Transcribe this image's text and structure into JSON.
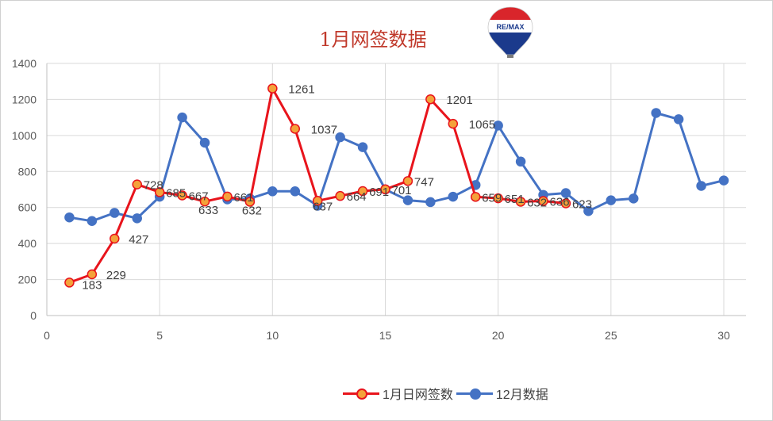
{
  "title": "1月网签数据",
  "logo_text": "RE/MAX",
  "colors": {
    "series1_line": "#e8141c",
    "series1_marker_fill": "#f4a23a",
    "series2_line": "#4472c4",
    "series2_marker_fill": "#4472c4",
    "grid": "#d9d9d9",
    "axis": "#bfbfbf"
  },
  "chart_data": {
    "type": "line",
    "title": "1月网签数据",
    "xlabel": "",
    "ylabel": "",
    "xlim": [
      0,
      30
    ],
    "ylim": [
      0,
      1400
    ],
    "x_ticks": [
      0,
      5,
      10,
      15,
      20,
      25,
      30
    ],
    "y_ticks": [
      0,
      200,
      400,
      600,
      800,
      1000,
      1200,
      1400
    ],
    "grid": true,
    "legend_position": "bottom",
    "series": [
      {
        "name": "1月日网签数",
        "x": [
          1,
          2,
          3,
          4,
          5,
          6,
          7,
          8,
          9,
          10,
          11,
          12,
          13,
          14,
          15,
          16,
          17,
          18,
          19,
          20,
          21,
          22,
          23
        ],
        "y": [
          183,
          229,
          427,
          728,
          685,
          667,
          633,
          661,
          632,
          1261,
          1037,
          637,
          664,
          691,
          701,
          747,
          1201,
          1065,
          659,
          651,
          632,
          636,
          623
        ],
        "data_labels": true
      },
      {
        "name": "12月数据",
        "x": [
          1,
          2,
          3,
          4,
          5,
          6,
          7,
          8,
          9,
          10,
          11,
          12,
          13,
          14,
          15,
          16,
          17,
          18,
          19,
          20,
          21,
          22,
          23,
          24,
          25,
          26,
          27,
          28,
          29,
          30
        ],
        "y": [
          545,
          525,
          570,
          540,
          660,
          1100,
          960,
          645,
          650,
          690,
          690,
          610,
          990,
          935,
          700,
          640,
          630,
          660,
          725,
          1055,
          855,
          670,
          680,
          580,
          640,
          650,
          1125,
          1090,
          720,
          750
        ],
        "data_labels": false
      }
    ]
  }
}
